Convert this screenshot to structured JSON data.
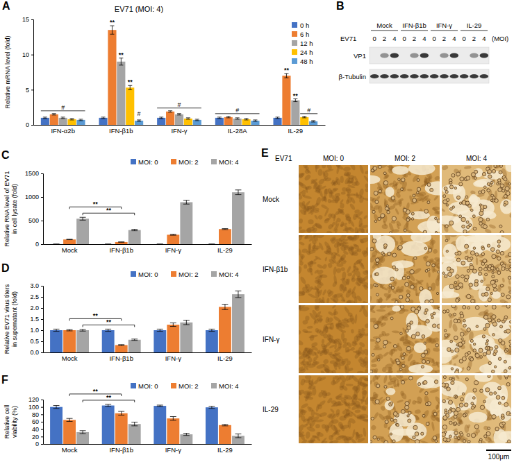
{
  "chart_data": [
    {
      "panel": "A",
      "type": "bar",
      "title": "EV71 (MOI: 4)",
      "y_label": [
        "Relative mRNA level (fold)"
      ],
      "categories": [
        "IFN-α2b",
        "IFN-β1b",
        "IFN-γ",
        "IL-28A",
        "IL-29"
      ],
      "series": [
        {
          "name": "0 h",
          "color": "#4472c4",
          "values": [
            1,
            1,
            1,
            1,
            1
          ],
          "errors": [
            0.1,
            0.1,
            0.1,
            0.1,
            0.1
          ]
        },
        {
          "name": "6 h",
          "color": "#ed7d31",
          "values": [
            1.5,
            13.5,
            1.9,
            1.1,
            7.0
          ],
          "errors": [
            0.1,
            0.6,
            0.1,
            0.1,
            0.3
          ],
          "significance": [
            null,
            "**",
            null,
            null,
            "**"
          ]
        },
        {
          "name": "12 h",
          "color": "#a5a5a5",
          "values": [
            1.0,
            9.0,
            1.5,
            0.9,
            3.5
          ],
          "errors": [
            0.1,
            0.5,
            0.1,
            0.1,
            0.2
          ],
          "significance": [
            null,
            "**",
            null,
            null,
            "**"
          ]
        },
        {
          "name": "24 h",
          "color": "#ffc000",
          "values": [
            0.8,
            5.3,
            0.9,
            0.8,
            1.1
          ],
          "errors": [
            0.1,
            0.3,
            0.1,
            0.1,
            0.1
          ],
          "significance": [
            null,
            "**",
            null,
            null,
            null
          ]
        },
        {
          "name": "48 h",
          "color": "#5b9bd5",
          "values": [
            0.7,
            0.6,
            0.7,
            0.6,
            0.5
          ],
          "errors": [
            0.1,
            0.1,
            0.1,
            0.1,
            0.1
          ]
        }
      ],
      "group_annotations": [
        {
          "text": "#",
          "category": 0,
          "series_from": 0,
          "series_to": 4
        },
        {
          "text": "#",
          "category": 1,
          "series_from": 4,
          "series_to": 4
        },
        {
          "text": "#",
          "category": 2,
          "series_from": 0,
          "series_to": 4
        },
        {
          "text": "#",
          "category": 3,
          "series_from": 0,
          "series_to": 4
        },
        {
          "text": "#",
          "category": 4,
          "series_from": 3,
          "series_to": 4
        }
      ],
      "ylim": [
        0,
        15
      ],
      "yticks": [
        0,
        5,
        10,
        15
      ],
      "legend": "top-right"
    },
    {
      "panel": "B",
      "type": "western_blot",
      "title": "EV71",
      "groups": [
        "Mock",
        "IFN-β1b",
        "IFN-γ",
        "IL-29"
      ],
      "moi": [
        0,
        2,
        4
      ],
      "moi_label": "(MOI)",
      "rows": [
        "VP1",
        "β-Tubulin"
      ]
    },
    {
      "panel": "C",
      "type": "bar",
      "y_label": [
        "Relative RNA level of EV71",
        "in cell lysate (fold)"
      ],
      "categories": [
        "Mock",
        "IFN-β1b",
        "IFN-γ",
        "IL-29"
      ],
      "series": [
        {
          "name": "MOI: 0",
          "color": "#4472c4",
          "values": [
            1,
            1,
            1,
            1
          ],
          "errors": [
            1,
            1,
            1,
            1
          ]
        },
        {
          "name": "MOI: 2",
          "color": "#ed7d31",
          "values": [
            100,
            45,
            200,
            320
          ],
          "errors": [
            5,
            3,
            10,
            10
          ]
        },
        {
          "name": "MOI: 4",
          "color": "#a5a5a5",
          "values": [
            540,
            300,
            890,
            1100
          ],
          "errors": [
            30,
            15,
            40,
            50
          ]
        }
      ],
      "comparisons": [
        {
          "series": 1,
          "from": 0,
          "to": 1,
          "text": "**"
        },
        {
          "series": 2,
          "from": 0,
          "to": 1,
          "text": "**"
        }
      ],
      "ylim": [
        0,
        1500
      ],
      "yticks": [
        0,
        500,
        1000,
        1500
      ],
      "legend": "top"
    },
    {
      "panel": "D",
      "type": "bar",
      "y_label": [
        "Relative EV71 virus titers",
        "in supernatant (fold)"
      ],
      "categories": [
        "Mock",
        "IFN-β1b",
        "IFN-γ",
        "IL-29"
      ],
      "series": [
        {
          "name": "MOI: 0",
          "color": "#4472c4",
          "values": [
            1,
            1,
            1,
            1
          ],
          "errors": [
            0.05,
            0.05,
            0.05,
            0.05
          ]
        },
        {
          "name": "MOI: 2",
          "color": "#ed7d31",
          "values": [
            1,
            0.33,
            1.25,
            2.05
          ],
          "errors": [
            0.03,
            0.02,
            0.08,
            0.12
          ]
        },
        {
          "name": "MOI: 4",
          "color": "#a5a5a5",
          "values": [
            1,
            0.57,
            1.35,
            2.62
          ],
          "errors": [
            0.04,
            0.03,
            0.1,
            0.15
          ]
        }
      ],
      "comparisons": [
        {
          "series": 1,
          "from": 0,
          "to": 1,
          "text": "**"
        },
        {
          "series": 2,
          "from": 0,
          "to": 1,
          "text": "**"
        }
      ],
      "ylim": [
        0,
        3
      ],
      "yticks": [
        {
          "value": 0,
          "label": "0.0"
        },
        0.5,
        {
          "value": 1,
          "label": "1.0"
        },
        1.5,
        {
          "value": 2,
          "label": "2.0"
        },
        2.5,
        {
          "value": 3,
          "label": "3.0"
        }
      ],
      "legend": "top"
    },
    {
      "panel": "E",
      "type": "image_grid",
      "title": "EV71",
      "columns": [
        "MOI: 0",
        "MOI: 2",
        "MOI: 4"
      ],
      "rows": [
        "Mock",
        "IFN-β1b",
        "IFN-γ",
        "IL-29"
      ],
      "scale_bar": "100μm"
    },
    {
      "panel": "F",
      "type": "bar",
      "y_label": [
        "Relative cell",
        "viability (%)"
      ],
      "categories": [
        "Mock",
        "IFN-β1b",
        "IFN-γ",
        "IL-29"
      ],
      "series": [
        {
          "name": "MOI: 0",
          "color": "#4472c4",
          "values": [
            100,
            104,
            103,
            99
          ],
          "errors": [
            4,
            3,
            2,
            3
          ]
        },
        {
          "name": "MOI: 2",
          "color": "#ed7d31",
          "values": [
            65,
            83,
            69,
            51
          ],
          "errors": [
            4,
            5,
            5,
            2
          ]
        },
        {
          "name": "MOI: 4",
          "color": "#a5a5a5",
          "values": [
            32,
            54,
            26,
            22
          ],
          "errors": [
            4,
            5,
            3,
            5
          ]
        }
      ],
      "comparisons": [
        {
          "series": 1,
          "from": 0,
          "to": 1,
          "text": "**"
        },
        {
          "series": 2,
          "from": 0,
          "to": 1,
          "text": "**"
        }
      ],
      "ylim": [
        0,
        120
      ],
      "yticks": [
        0,
        20,
        40,
        60,
        80,
        100,
        120
      ],
      "legend": "top"
    }
  ]
}
